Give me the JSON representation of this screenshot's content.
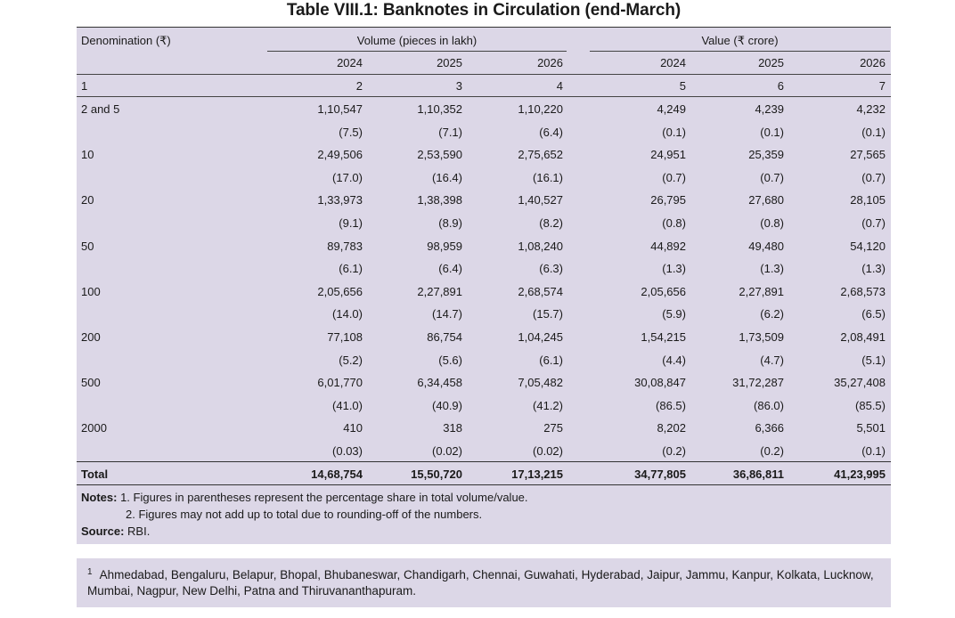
{
  "title": "Table VIII.1: Banknotes in Circulation (end-March)",
  "header": {
    "denomination": "Denomination (₹)",
    "volume_group": "Volume (pieces in lakh)",
    "value_group": "Value (₹ crore)",
    "years": [
      "2024",
      "2025",
      "2026",
      "2024",
      "2025",
      "2026"
    ],
    "col_numbers": [
      "1",
      "2",
      "3",
      "4",
      "5",
      "6",
      "7"
    ]
  },
  "rows": [
    {
      "label": "2 and 5",
      "values": [
        "1,10,547",
        "1,10,352",
        "1,10,220",
        "4,249",
        "4,239",
        "4,232"
      ],
      "shares": [
        "(7.5)",
        "(7.1)",
        "(6.4)",
        "(0.1)",
        "(0.1)",
        "(0.1)"
      ]
    },
    {
      "label": "10",
      "values": [
        "2,49,506",
        "2,53,590",
        "2,75,652",
        "24,951",
        "25,359",
        "27,565"
      ],
      "shares": [
        "(17.0)",
        "(16.4)",
        "(16.1)",
        "(0.7)",
        "(0.7)",
        "(0.7)"
      ]
    },
    {
      "label": "20",
      "values": [
        "1,33,973",
        "1,38,398",
        "1,40,527",
        "26,795",
        "27,680",
        "28,105"
      ],
      "shares": [
        "(9.1)",
        "(8.9)",
        "(8.2)",
        "(0.8)",
        "(0.8)",
        "(0.7)"
      ]
    },
    {
      "label": "50",
      "values": [
        "89,783",
        "98,959",
        "1,08,240",
        "44,892",
        "49,480",
        "54,120"
      ],
      "shares": [
        "(6.1)",
        "(6.4)",
        "(6.3)",
        "(1.3)",
        "(1.3)",
        "(1.3)"
      ]
    },
    {
      "label": "100",
      "values": [
        "2,05,656",
        "2,27,891",
        "2,68,574",
        "2,05,656",
        "2,27,891",
        "2,68,573"
      ],
      "shares": [
        "(14.0)",
        "(14.7)",
        "(15.7)",
        "(5.9)",
        "(6.2)",
        "(6.5)"
      ]
    },
    {
      "label": "200",
      "values": [
        "77,108",
        "86,754",
        "1,04,245",
        "1,54,215",
        "1,73,509",
        "2,08,491"
      ],
      "shares": [
        "(5.2)",
        "(5.6)",
        "(6.1)",
        "(4.4)",
        "(4.7)",
        "(5.1)"
      ]
    },
    {
      "label": "500",
      "values": [
        "6,01,770",
        "6,34,458",
        "7,05,482",
        "30,08,847",
        "31,72,287",
        "35,27,408"
      ],
      "shares": [
        "(41.0)",
        "(40.9)",
        "(41.2)",
        "(86.5)",
        "(86.0)",
        "(85.5)"
      ]
    },
    {
      "label": "2000",
      "values": [
        "410",
        "318",
        "275",
        "8,202",
        "6,366",
        "5,501"
      ],
      "shares": [
        "(0.03)",
        "(0.02)",
        "(0.02)",
        "(0.2)",
        "(0.2)",
        "(0.1)"
      ]
    }
  ],
  "total": {
    "label": "Total",
    "values": [
      "14,68,754",
      "15,50,720",
      "17,13,215",
      "34,77,805",
      "36,86,811",
      "41,23,995"
    ]
  },
  "notes": {
    "label": "Notes:",
    "items": [
      "1.  Figures in parentheses represent the percentage share in total volume/value.",
      "2.  Figures may not add up to total due to rounding-off of the numbers."
    ],
    "source_label": "Source:",
    "source": "RBI."
  },
  "footnote": {
    "marker": "1",
    "text": "Ahmedabad, Bengaluru, Belapur, Bhopal, Bhubaneswar, Chandigarh, Chennai, Guwahati, Hyderabad, Jaipur, Jammu, Kanpur, Kolkata, Lucknow, Mumbai, Nagpur, New Delhi, Patna and Thiruvananthapuram."
  }
}
